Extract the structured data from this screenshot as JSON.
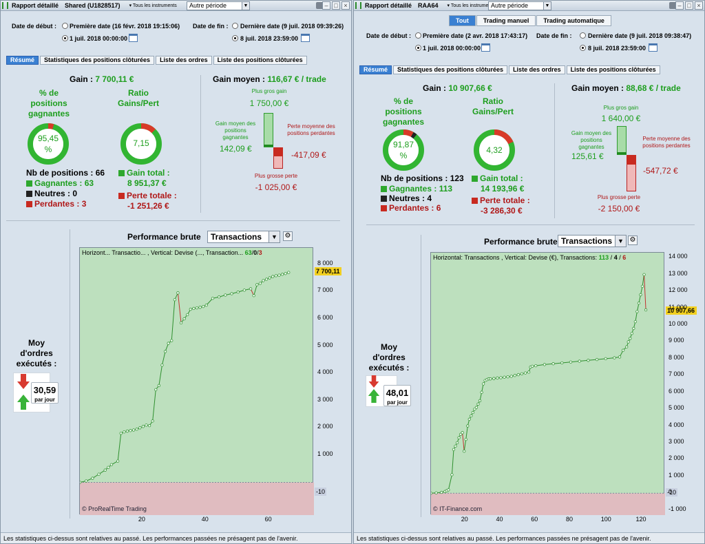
{
  "common": {
    "start_label": "Date de début :",
    "end_label": "Date de fin :",
    "period": "Autre période",
    "instruments": "Tous les instruments",
    "tabs": [
      "Résumé",
      "Statistiques des positions clôturées",
      "Liste des ordres",
      "Liste des positions clôturées"
    ],
    "gain_label": "Gain :",
    "gain_moyen_label": "Gain moyen :",
    "per_trade": "/ trade",
    "pct_win_label": "% de positions gagnantes",
    "ratio_label": "Ratio Gains/Pert",
    "nb_pos_label": "Nb de positions :",
    "gagnantes_label": "Gagnantes :",
    "neutres_label": "Neutres :",
    "perdantes_label": "Perdantes :",
    "gain_total_label": "Gain total :",
    "perte_totale_label": "Perte totale :",
    "plus_gros_gain_label": "Plus gros gain",
    "gain_moyen_pos_label": "Gain moyen des positions gagnantes",
    "perte_moyenne_label": "Perte moyenne des positions perdantes",
    "plus_grosse_perte_label": "Plus grosse perte",
    "perf_label": "Performance brute",
    "perf_select": "Transactions",
    "moy_ordres_label": "Moy d'ordres exécutés :",
    "par_jour": "par jour",
    "footer": "Les statistiques ci-dessus sont relatives au passé. Les performances passées ne présagent pas de l'avenir.",
    "colors": {
      "green": "#1d9e1d",
      "red": "#b01818",
      "chart_bg": "#bde0be",
      "neg_bg": "#e0bcc0",
      "line": "#2e8f2e"
    }
  },
  "left": {
    "title": "Rapport détaillé",
    "account": "Shared (U1828517)",
    "start_first": "Première date (16 févr. 2018 19:15:06)",
    "start_custom": "1 juil. 2018 00:00:00",
    "end_last": "Dernière date (9 juil. 2018 09:39:26)",
    "end_custom": "8 juil. 2018 23:59:00",
    "gain": "7 700,11 €",
    "gain_moyen": "116,67 €",
    "pct_win": "95,45",
    "pct_sign": "%",
    "ratio": "7,15",
    "nb_positions": "66",
    "gagnantes": "63",
    "neutres": "0",
    "perdantes": "3",
    "gain_total": "8 951,37 €",
    "perte_totale": "-1 251,26 €",
    "plus_gros_gain": "1 750,00 €",
    "gain_moyen_pos": "142,09 €",
    "perte_moyenne": "-417,09 €",
    "plus_grosse_perte": "-1 025,00 €",
    "moy_ordres": "30,59",
    "legend_text": "Horizont... Transactio... , Vertical: Devise (..., Transaction...",
    "legend_g": "63",
    "legend_n": "0",
    "legend_p": "3",
    "legend_sep": "/",
    "current_badge": "7 700,11",
    "neg_badge": "-10",
    "watermark": "© ProRealTime Trading",
    "y_ticks": [
      "8 000",
      "7 000",
      "6 000",
      "5 000",
      "4 000",
      "3 000",
      "2 000",
      "1 000"
    ],
    "x_ticks": [
      "20",
      "40",
      "60"
    ]
  },
  "right": {
    "title": "Rapport détaillé",
    "account": "RAA64",
    "seg": [
      "Tout",
      "Trading manuel",
      "Trading automatique"
    ],
    "start_first": "Première date (2 avr. 2018 17:43:17)",
    "start_custom": "1 juil. 2018 00:00:00",
    "end_last": "Dernière date (9 juil. 2018 09:38:47)",
    "end_custom": "8 juil. 2018 23:59:00",
    "gain": "10 907,66 €",
    "gain_moyen": "88,68 €",
    "pct_win": "91,87",
    "pct_sign": "%",
    "ratio": "4,32",
    "nb_positions": "123",
    "gagnantes": "113",
    "neutres": "4",
    "perdantes": "6",
    "gain_total": "14 193,96 €",
    "perte_totale": "-3 286,30 €",
    "plus_gros_gain": "1 640,00 €",
    "gain_moyen_pos": "125,61 €",
    "perte_moyenne": "-547,72 €",
    "plus_grosse_perte": "-2 150,00 €",
    "moy_ordres": "48,01",
    "legend_text": "Horizontal: Transactions , Vertical: Devise (€), Transactions:",
    "legend_g": "113",
    "legend_n": "4",
    "legend_p": "6",
    "legend_sep": "/",
    "current_badge": "10 907,66",
    "neg_badge": "-10",
    "watermark": "© IT-Finance.com",
    "y_ticks": [
      "14 000",
      "13 000",
      "12 000",
      "11 000",
      "10 000",
      "9 000",
      "8 000",
      "7 000",
      "6 000",
      "5 000",
      "4 000",
      "3 000",
      "2 000",
      "1 000",
      "0",
      "-1 000"
    ],
    "x_ticks": [
      "20",
      "40",
      "60",
      "80",
      "100",
      "120"
    ]
  },
  "chart_data": [
    {
      "type": "line",
      "xlabel": "Transactions",
      "ylabel": "Devise",
      "ylim": [
        -1200,
        8600
      ],
      "xlim": [
        0,
        74
      ],
      "series": [
        {
          "name": "Transactions",
          "x": [
            0,
            2,
            4,
            6,
            8,
            9,
            10,
            12,
            13,
            14,
            15,
            16,
            17,
            18,
            19,
            20,
            21,
            22,
            23,
            24,
            25,
            26,
            27,
            28,
            29,
            30,
            31,
            32,
            33,
            34,
            35,
            36,
            37,
            38,
            39,
            40,
            42,
            44,
            46,
            48,
            50,
            52,
            54,
            55,
            56,
            57,
            58,
            59,
            60,
            61,
            62,
            63,
            64,
            65,
            66
          ],
          "values": [
            0,
            50,
            150,
            300,
            450,
            550,
            650,
            780,
            1800,
            1850,
            1880,
            1900,
            1920,
            1950,
            2000,
            2050,
            2100,
            2080,
            2250,
            3400,
            3550,
            4300,
            4800,
            5100,
            5200,
            6700,
            6950,
            5850,
            6000,
            6150,
            6350,
            6380,
            6400,
            6420,
            6450,
            6500,
            6750,
            6800,
            6870,
            6920,
            6980,
            7050,
            7100,
            6850,
            7250,
            7300,
            7400,
            7450,
            7500,
            7550,
            7580,
            7600,
            7630,
            7660,
            7700
          ]
        }
      ]
    },
    {
      "type": "line",
      "xlabel": "Transactions",
      "ylabel": "Devise (€)",
      "ylim": [
        -1300,
        14300
      ],
      "xlim": [
        0,
        134
      ],
      "series": [
        {
          "name": "Transactions",
          "x": [
            0,
            3,
            6,
            8,
            9,
            10,
            12,
            13,
            14,
            15,
            16,
            17,
            18,
            19,
            20,
            21,
            22,
            23,
            24,
            25,
            26,
            27,
            28,
            29,
            30,
            31,
            32,
            33,
            34,
            36,
            38,
            40,
            42,
            44,
            46,
            48,
            50,
            52,
            54,
            56,
            57,
            58,
            60,
            65,
            70,
            75,
            80,
            85,
            90,
            95,
            100,
            105,
            108,
            110,
            112,
            113,
            114,
            115,
            116,
            117,
            118,
            119,
            120,
            121,
            122,
            123
          ],
          "values": [
            0,
            20,
            50,
            100,
            150,
            200,
            1100,
            2600,
            2800,
            3000,
            3300,
            3500,
            3600,
            2500,
            3200,
            4000,
            4400,
            4600,
            4800,
            5000,
            5100,
            5300,
            5500,
            6000,
            6500,
            6700,
            6750,
            6800,
            6800,
            6820,
            6850,
            6870,
            6900,
            6920,
            6950,
            7000,
            7050,
            7100,
            7150,
            7200,
            7500,
            7550,
            7580,
            7650,
            7700,
            7750,
            7800,
            7850,
            7900,
            7950,
            8000,
            8050,
            8100,
            8500,
            8700,
            9000,
            9200,
            9500,
            9800,
            10200,
            10800,
            11300,
            11800,
            12300,
            13000,
            10900
          ]
        }
      ]
    }
  ]
}
